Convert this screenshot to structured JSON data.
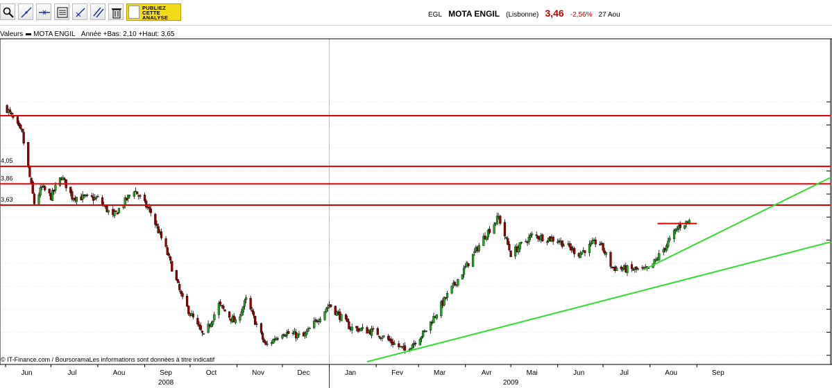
{
  "toolbar": {
    "tools": [
      {
        "icon": "zoom-icon"
      },
      {
        "icon": "draw-trendline-icon"
      },
      {
        "icon": "draw-horizontal-line-icon"
      },
      {
        "icon": "chart-properties-icon"
      },
      {
        "icon": "draw-arrow-line-icon"
      },
      {
        "icon": "draw-parallel-line-icon"
      },
      {
        "icon": "trash-icon"
      }
    ],
    "publish_button": {
      "line1": "PUBLIEZ",
      "line2": "CETTE",
      "line3": "ANALYSE"
    }
  },
  "quote": {
    "symbol": "EGL",
    "name": "MOTA ENGIL",
    "exchange": "(Lisbonne)",
    "price": "3,46",
    "change": "-2,56%",
    "date": "27 Aou"
  },
  "legend": {
    "label": "Valeurs",
    "series": "MOTA ENGIL",
    "stats": "Année +Bas: 2,10 +Haut: 3,65"
  },
  "footer": {
    "copyright": "© IT-Finance.com / BoursoramaLes informations sont données à titre indicatif"
  },
  "colors": {
    "up": "#22a522",
    "down": "#990000",
    "resistance": "#dd0000",
    "trendline": "#33dd33",
    "grid": "#d6d6d6"
  },
  "chart_data": {
    "type": "candlestick",
    "grid": true,
    "y_axis": {
      "side": "left",
      "tick_labels": [
        "4,05",
        "3,86",
        "3,63"
      ]
    },
    "x_axis": {
      "month_labels": [
        "Jun",
        "Jul",
        "Aou",
        "Sep",
        "Oct",
        "Nov",
        "Dec",
        "Jan",
        "Fev",
        "Mar",
        "Avr",
        "Mai",
        "Jun",
        "Jul",
        "Aou",
        "Sep"
      ],
      "year_labels": [
        "2008",
        "2009"
      ]
    },
    "horizontal_lines": [
      {
        "value": 4.05
      },
      {
        "value": 3.86
      },
      {
        "value": 3.63
      }
    ],
    "anchors": [
      {
        "date": "2008-06-01",
        "close": 4.7
      },
      {
        "date": "2008-06-12",
        "close": 4.4
      },
      {
        "date": "2008-06-20",
        "close": 3.65
      },
      {
        "date": "2008-06-25",
        "close": 3.82
      },
      {
        "date": "2008-07-01",
        "close": 3.72
      },
      {
        "date": "2008-07-08",
        "close": 3.94
      },
      {
        "date": "2008-07-15",
        "close": 3.72
      },
      {
        "date": "2008-08-01",
        "close": 3.7
      },
      {
        "date": "2008-08-11",
        "close": 3.5
      },
      {
        "date": "2008-08-25",
        "close": 3.8
      },
      {
        "date": "2008-09-05",
        "close": 3.55
      },
      {
        "date": "2008-09-15",
        "close": 3.15
      },
      {
        "date": "2008-09-26",
        "close": 2.6
      },
      {
        "date": "2008-10-10",
        "close": 2.2
      },
      {
        "date": "2008-10-20",
        "close": 2.55
      },
      {
        "date": "2008-10-31",
        "close": 2.35
      },
      {
        "date": "2008-11-07",
        "close": 2.6
      },
      {
        "date": "2008-11-20",
        "close": 2.1
      },
      {
        "date": "2008-12-01",
        "close": 2.25
      },
      {
        "date": "2008-12-15",
        "close": 2.2
      },
      {
        "date": "2009-01-01",
        "close": 2.55
      },
      {
        "date": "2009-01-15",
        "close": 2.3
      },
      {
        "date": "2009-02-01",
        "close": 2.25
      },
      {
        "date": "2009-02-20",
        "close": 2.05
      },
      {
        "date": "2009-03-05",
        "close": 2.25
      },
      {
        "date": "2009-03-20",
        "close": 2.65
      },
      {
        "date": "2009-04-01",
        "close": 2.95
      },
      {
        "date": "2009-04-14",
        "close": 3.3
      },
      {
        "date": "2009-04-23",
        "close": 3.5
      },
      {
        "date": "2009-05-01",
        "close": 3.1
      },
      {
        "date": "2009-05-15",
        "close": 3.3
      },
      {
        "date": "2009-06-01",
        "close": 3.25
      },
      {
        "date": "2009-06-15",
        "close": 3.1
      },
      {
        "date": "2009-06-28",
        "close": 3.25
      },
      {
        "date": "2009-07-07",
        "close": 2.95
      },
      {
        "date": "2009-07-20",
        "close": 2.93
      },
      {
        "date": "2009-07-31",
        "close": 2.92
      },
      {
        "date": "2009-08-10",
        "close": 3.15
      },
      {
        "date": "2009-08-20",
        "close": 3.4
      },
      {
        "date": "2009-08-27",
        "close": 3.46
      }
    ]
  }
}
